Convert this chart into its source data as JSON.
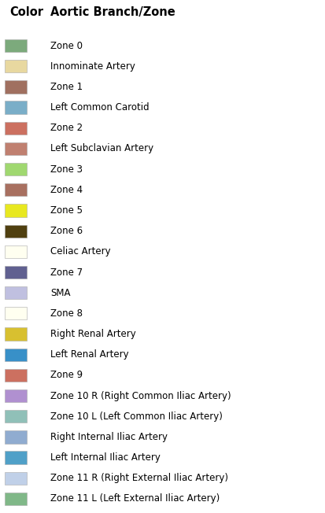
{
  "header_color": "#000000",
  "header_left": "Color",
  "header_right": "Aortic Branch/Zone",
  "entries": [
    {
      "color": "#7caa7c",
      "label": "Zone 0"
    },
    {
      "color": "#e8d8a0",
      "label": "Innominate Artery"
    },
    {
      "color": "#a07060",
      "label": "Zone 1"
    },
    {
      "color": "#7aaec8",
      "label": "Left Common Carotid"
    },
    {
      "color": "#cc7060",
      "label": "Zone 2"
    },
    {
      "color": "#c08070",
      "label": "Left Subclavian Artery"
    },
    {
      "color": "#a0d870",
      "label": "Zone 3"
    },
    {
      "color": "#a87060",
      "label": "Zone 4"
    },
    {
      "color": "#e8e820",
      "label": "Zone 5"
    },
    {
      "color": "#504010",
      "label": "Zone 6"
    },
    {
      "color": "#fffff0",
      "label": "Celiac Artery"
    },
    {
      "color": "#606090",
      "label": "Zone 7"
    },
    {
      "color": "#c0c0e0",
      "label": "SMA"
    },
    {
      "color": "#fffff0",
      "label": "Zone 8"
    },
    {
      "color": "#d8c030",
      "label": "Right Renal Artery"
    },
    {
      "color": "#3890c8",
      "label": "Left Renal Artery"
    },
    {
      "color": "#cc7060",
      "label": "Zone 9"
    },
    {
      "color": "#b090d0",
      "label": "Zone 10 R (Right Common Iliac Artery)"
    },
    {
      "color": "#90c0b8",
      "label": "Zone 10 L (Left Common Iliac Artery)"
    },
    {
      "color": "#90acd0",
      "label": "Right Internal Iliac Artery"
    },
    {
      "color": "#50a0c8",
      "label": "Left Internal Iliac Artery"
    },
    {
      "color": "#c0d0e8",
      "label": "Zone 11 R (Right External Iliac Artery)"
    },
    {
      "color": "#80b888",
      "label": "Zone 11 L (Left External Iliac Artery)"
    }
  ],
  "figsize": [
    4.14,
    6.52
  ],
  "dpi": 100,
  "background_color": "#ffffff",
  "font_size": 8.5,
  "header_font_size": 10.5
}
